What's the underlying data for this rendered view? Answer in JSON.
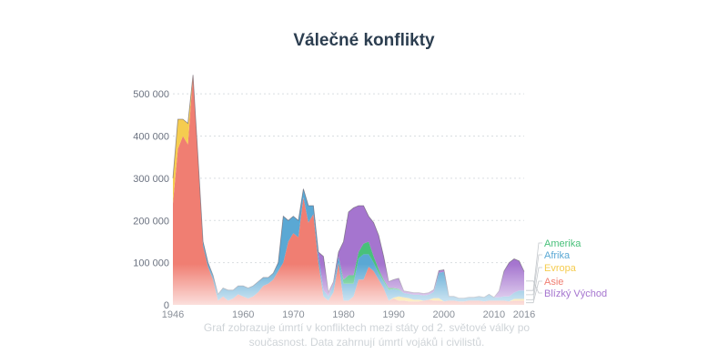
{
  "chart_data": {
    "type": "area",
    "stacked": true,
    "title": "Válečné konflikty",
    "caption": "Graf zobrazuje úmrtí v konfliktech mezi státy od 2. světové války po\nsoučasnost. Data zahrnují úmrtí vojáků i civilistů.",
    "xlabel": "",
    "ylabel": "",
    "xlim": [
      1946,
      2016
    ],
    "ylim": [
      0,
      550000
    ],
    "yticks": [
      0,
      100000,
      200000,
      300000,
      400000,
      500000
    ],
    "ytick_labels": [
      "0",
      "100 000",
      "200 000",
      "300 000",
      "400 000",
      "500 000"
    ],
    "xticks": [
      1946,
      1960,
      1970,
      1980,
      1990,
      2000,
      2010,
      2016
    ],
    "xtick_labels": [
      "1946",
      "1960",
      "1970",
      "1980",
      "1990",
      "2000",
      "2010",
      "2016"
    ],
    "grid": true,
    "legend_position": "right",
    "x": [
      1946,
      1947,
      1948,
      1949,
      1950,
      1951,
      1952,
      1953,
      1954,
      1955,
      1956,
      1957,
      1958,
      1959,
      1960,
      1961,
      1962,
      1963,
      1964,
      1965,
      1966,
      1967,
      1968,
      1969,
      1970,
      1971,
      1972,
      1973,
      1974,
      1975,
      1976,
      1977,
      1978,
      1979,
      1980,
      1981,
      1982,
      1983,
      1984,
      1985,
      1986,
      1987,
      1988,
      1989,
      1990,
      1991,
      1992,
      1993,
      1994,
      1995,
      1996,
      1997,
      1998,
      1999,
      2000,
      2001,
      2002,
      2003,
      2004,
      2005,
      2006,
      2007,
      2008,
      2009,
      2010,
      2011,
      2012,
      2013,
      2014,
      2015,
      2016
    ],
    "series": [
      {
        "name": "Asie",
        "color": "#f07e72",
        "values": [
          240000,
          370000,
          400000,
          380000,
          545000,
          350000,
          140000,
          90000,
          60000,
          10000,
          20000,
          10000,
          15000,
          25000,
          20000,
          15000,
          20000,
          30000,
          45000,
          50000,
          60000,
          80000,
          100000,
          150000,
          170000,
          160000,
          255000,
          195000,
          215000,
          100000,
          20000,
          10000,
          30000,
          100000,
          10000,
          10000,
          20000,
          60000,
          60000,
          90000,
          80000,
          60000,
          40000,
          10000,
          15000,
          10000,
          10000,
          8000,
          8000,
          8000,
          10000,
          12000,
          10000,
          10000,
          8000,
          10000,
          10000,
          8000,
          8000,
          10000,
          10000,
          10000,
          8000,
          10000,
          10000,
          10000,
          10000,
          8000,
          10000,
          10000,
          10000
        ]
      },
      {
        "name": "Evropa",
        "color": "#f5cc4f",
        "values": [
          60000,
          70000,
          40000,
          50000,
          0,
          0,
          0,
          0,
          0,
          0,
          0,
          0,
          0,
          0,
          0,
          0,
          0,
          0,
          0,
          0,
          0,
          0,
          0,
          0,
          0,
          0,
          0,
          0,
          0,
          0,
          0,
          0,
          0,
          0,
          0,
          0,
          0,
          0,
          0,
          0,
          0,
          0,
          0,
          0,
          2000,
          10000,
          8000,
          8000,
          4000,
          4000,
          0,
          0,
          6000,
          6000,
          0,
          0,
          0,
          0,
          0,
          0,
          0,
          0,
          0,
          0,
          0,
          0,
          0,
          0,
          4000,
          4000,
          4000
        ]
      },
      {
        "name": "Afrika",
        "color": "#5aa8d4",
        "values": [
          0,
          0,
          0,
          0,
          0,
          0,
          10000,
          10000,
          10000,
          15000,
          20000,
          25000,
          20000,
          20000,
          25000,
          25000,
          25000,
          25000,
          20000,
          15000,
          15000,
          20000,
          110000,
          50000,
          40000,
          40000,
          20000,
          40000,
          20000,
          20000,
          15000,
          10000,
          20000,
          15000,
          40000,
          40000,
          30000,
          50000,
          60000,
          30000,
          20000,
          15000,
          15000,
          25000,
          20000,
          15000,
          10000,
          10000,
          12000,
          12000,
          12000,
          12000,
          15000,
          60000,
          70000,
          10000,
          10000,
          8000,
          8000,
          8000,
          8000,
          10000,
          10000,
          15000,
          8000,
          8000,
          10000,
          12000,
          15000,
          20000,
          20000
        ]
      },
      {
        "name": "Amerika",
        "color": "#48c07a",
        "values": [
          0,
          0,
          0,
          0,
          0,
          0,
          0,
          0,
          0,
          0,
          0,
          0,
          0,
          0,
          0,
          0,
          0,
          0,
          0,
          0,
          0,
          0,
          0,
          0,
          0,
          0,
          0,
          0,
          0,
          0,
          0,
          0,
          0,
          0,
          10000,
          20000,
          20000,
          15000,
          25000,
          30000,
          15000,
          10000,
          5000,
          5000,
          3000,
          3000,
          0,
          0,
          0,
          0,
          0,
          0,
          0,
          0,
          0,
          0,
          0,
          0,
          0,
          0,
          0,
          0,
          0,
          0,
          0,
          0,
          0,
          0,
          0,
          0,
          0
        ]
      },
      {
        "name": "Blízký Východ",
        "color": "#a575cf",
        "values": [
          0,
          0,
          0,
          0,
          0,
          0,
          0,
          0,
          0,
          0,
          0,
          0,
          0,
          0,
          0,
          0,
          0,
          0,
          0,
          0,
          0,
          0,
          0,
          0,
          0,
          0,
          0,
          0,
          0,
          5000,
          80000,
          10000,
          5000,
          10000,
          90000,
          150000,
          160000,
          110000,
          90000,
          60000,
          80000,
          80000,
          55000,
          15000,
          20000,
          25000,
          5000,
          5000,
          5000,
          5000,
          5000,
          5000,
          5000,
          5000,
          5000,
          0,
          0,
          0,
          0,
          0,
          0,
          0,
          0,
          0,
          0,
          15000,
          60000,
          80000,
          80000,
          70000,
          45000
        ]
      }
    ]
  }
}
